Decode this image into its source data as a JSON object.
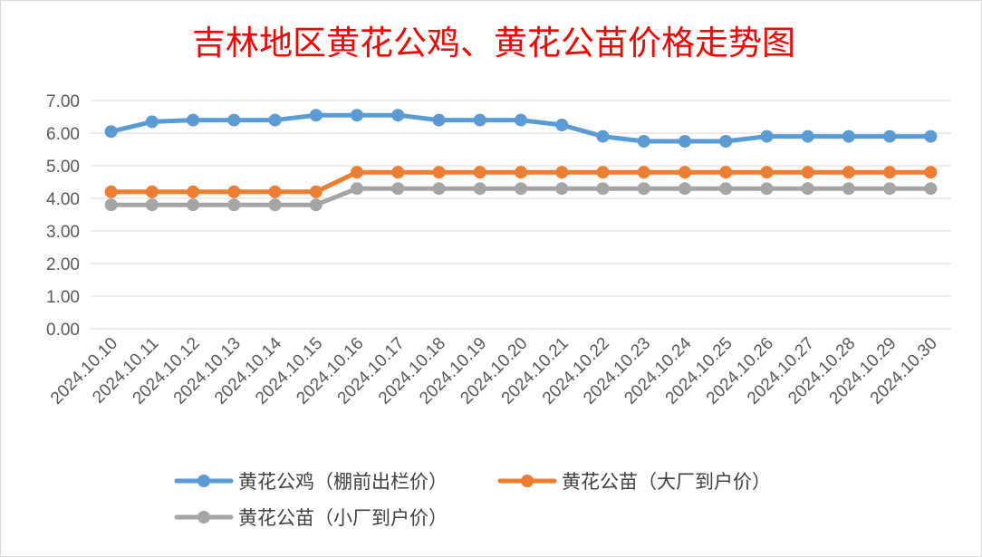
{
  "chart_data": {
    "type": "line",
    "title": "吉林地区黄花公鸡、黄花公苗价格走势图",
    "xlabel": "",
    "ylabel": "",
    "ylim": [
      0,
      7
    ],
    "yticks": [
      "0.00",
      "1.00",
      "2.00",
      "3.00",
      "4.00",
      "5.00",
      "6.00",
      "7.00"
    ],
    "grid": true,
    "legend_position": "bottom",
    "categories": [
      "2024.10.10",
      "2024.10.11",
      "2024.10.12",
      "2024.10.13",
      "2024.10.14",
      "2024.10.15",
      "2024.10.16",
      "2024.10.17",
      "2024.10.18",
      "2024.10.19",
      "2024.10.20",
      "2024.10.21",
      "2024.10.22",
      "2024.10.23",
      "2024.10.24",
      "2024.10.25",
      "2024.10.26",
      "2024.10.27",
      "2024.10.28",
      "2024.10.29",
      "2024.10.30"
    ],
    "series": [
      {
        "name": "黄花公鸡（棚前出栏价）",
        "color": "#5b9bd5",
        "values": [
          6.05,
          6.35,
          6.4,
          6.4,
          6.4,
          6.55,
          6.55,
          6.55,
          6.4,
          6.4,
          6.4,
          6.25,
          5.9,
          5.75,
          5.75,
          5.75,
          5.9,
          5.9,
          5.9,
          5.9,
          5.9
        ]
      },
      {
        "name": "黄花公苗（大厂到户价）",
        "color": "#ed7d31",
        "values": [
          4.2,
          4.2,
          4.2,
          4.2,
          4.2,
          4.2,
          4.8,
          4.8,
          4.8,
          4.8,
          4.8,
          4.8,
          4.8,
          4.8,
          4.8,
          4.8,
          4.8,
          4.8,
          4.8,
          4.8,
          4.8
        ]
      },
      {
        "name": "黄花公苗（小厂到户价）",
        "color": "#a5a5a5",
        "values": [
          3.8,
          3.8,
          3.8,
          3.8,
          3.8,
          3.8,
          4.3,
          4.3,
          4.3,
          4.3,
          4.3,
          4.3,
          4.3,
          4.3,
          4.3,
          4.3,
          4.3,
          4.3,
          4.3,
          4.3,
          4.3
        ]
      }
    ]
  }
}
